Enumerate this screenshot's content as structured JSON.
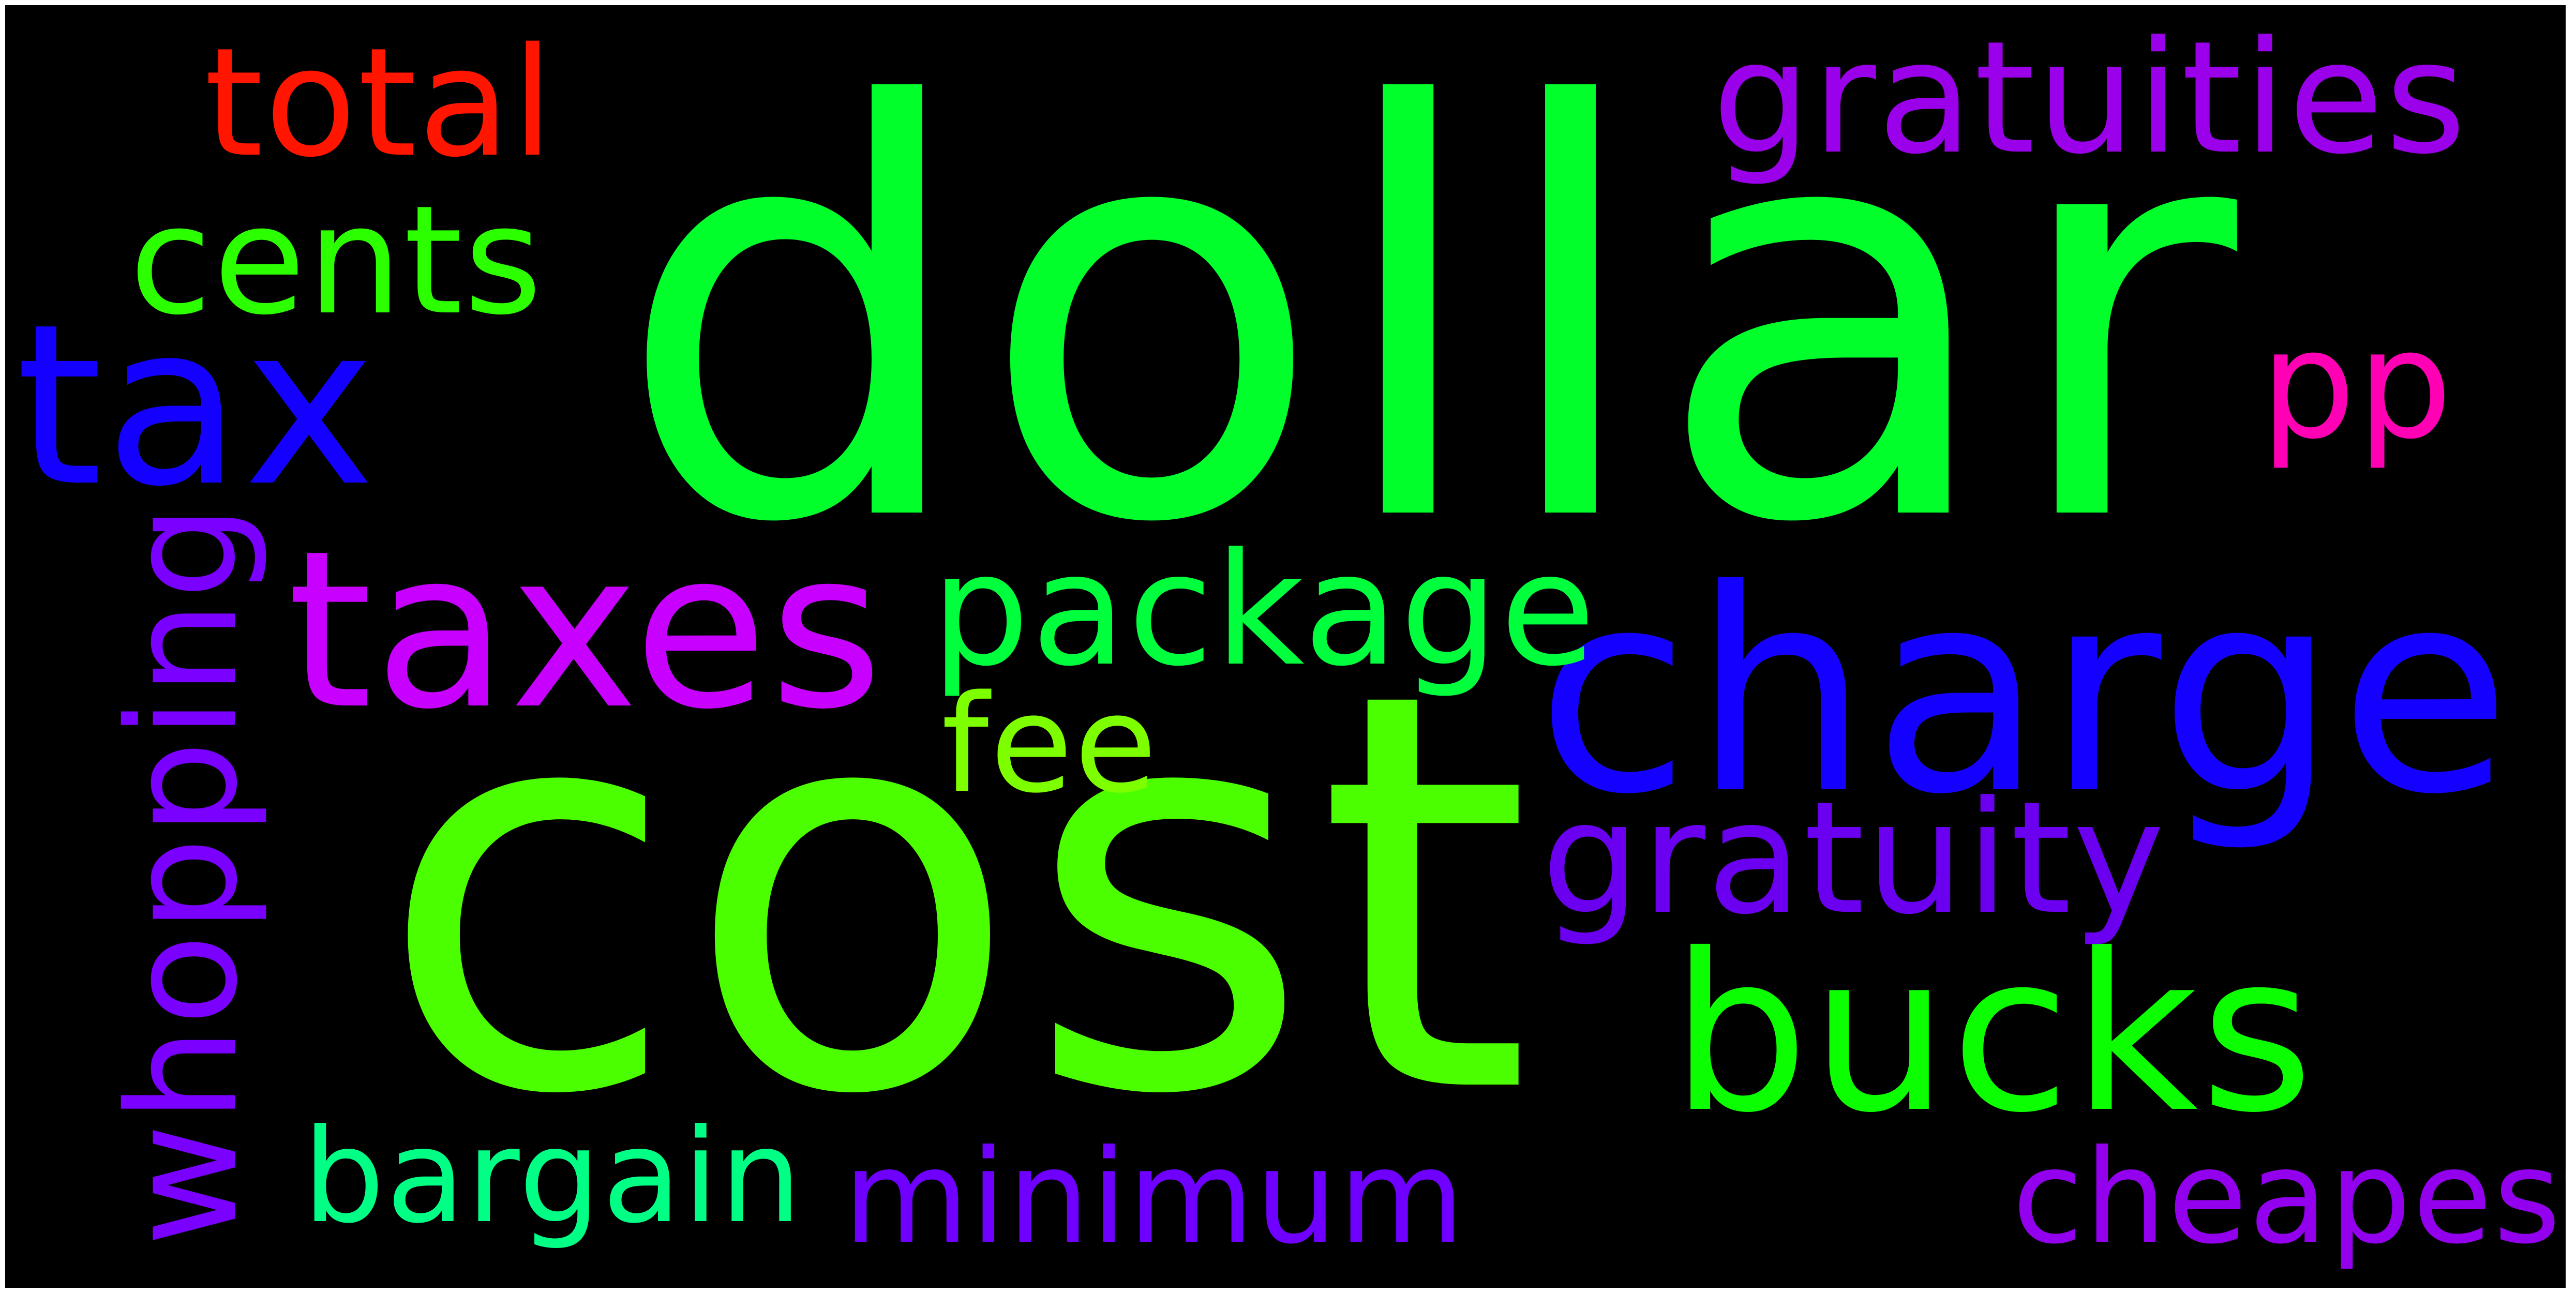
{
  "words": [
    {
      "text": "dollar",
      "color": "#00ff2b"
    },
    {
      "text": "cost",
      "color": "#4cff00"
    },
    {
      "text": "charge",
      "color": "#1400ff"
    },
    {
      "text": "taxes",
      "color": "#c800ff"
    },
    {
      "text": "tax",
      "color": "#1400ff"
    },
    {
      "text": "bucks",
      "color": "#0cff00"
    },
    {
      "text": "gratuities",
      "color": "#9b00ea"
    },
    {
      "text": "gratuity",
      "color": "#6a00ef"
    },
    {
      "text": "package",
      "color": "#00ff3c"
    },
    {
      "text": "total",
      "color": "#ff1500"
    },
    {
      "text": "cents",
      "color": "#2bff00"
    },
    {
      "text": "pp",
      "color": "#ff00b4"
    },
    {
      "text": "fee",
      "color": "#7eff00"
    },
    {
      "text": "whopping",
      "color": "#7a00ff"
    },
    {
      "text": "bargain",
      "color": "#00ff84"
    },
    {
      "text": "minimum",
      "color": "#6f00ff"
    },
    {
      "text": "cheapest",
      "color": "#9300ee"
    }
  ]
}
